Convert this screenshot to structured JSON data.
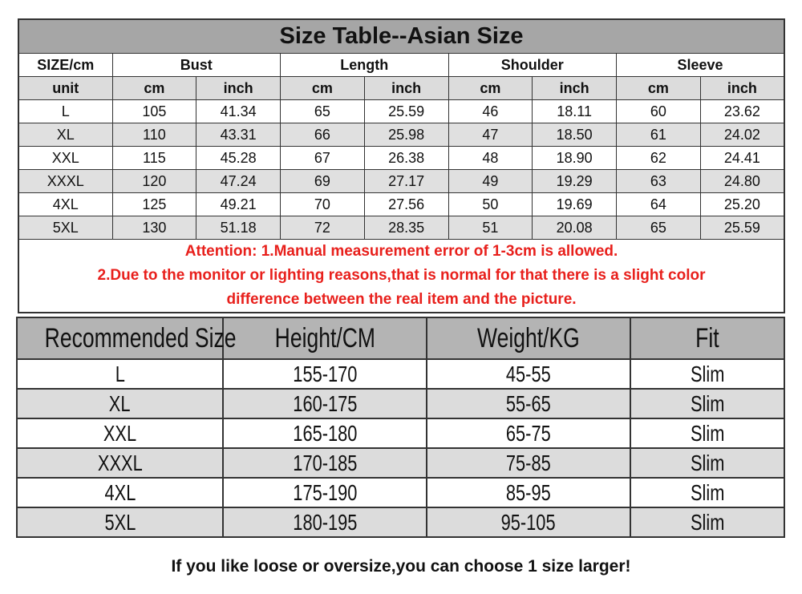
{
  "asian_table": {
    "title": "Size Table--Asian Size",
    "headers": [
      "SIZE/cm",
      "Bust",
      "Length",
      "Shoulder",
      "Sleeve"
    ],
    "unit_row": [
      "unit",
      "cm",
      "inch",
      "cm",
      "inch",
      "cm",
      "inch",
      "cm",
      "inch"
    ],
    "rows": [
      [
        "L",
        "105",
        "41.34",
        "65",
        "25.59",
        "46",
        "18.11",
        "60",
        "23.62"
      ],
      [
        "XL",
        "110",
        "43.31",
        "66",
        "25.98",
        "47",
        "18.50",
        "61",
        "24.02"
      ],
      [
        "XXL",
        "115",
        "45.28",
        "67",
        "26.38",
        "48",
        "18.90",
        "62",
        "24.41"
      ],
      [
        "XXXL",
        "120",
        "47.24",
        "69",
        "27.17",
        "49",
        "19.29",
        "63",
        "24.80"
      ],
      [
        "4XL",
        "125",
        "49.21",
        "70",
        "27.56",
        "50",
        "19.69",
        "64",
        "25.20"
      ],
      [
        "5XL",
        "130",
        "51.18",
        "72",
        "28.35",
        "51",
        "20.08",
        "65",
        "25.59"
      ]
    ],
    "attention_line1": "Attention:  1.Manual measurement error of 1-3cm is allowed.",
    "attention_line2": "2.Due to the monitor or lighting reasons,that is normal for that there is a slight color",
    "attention_line3": "difference between the real item and the picture.",
    "attention_color": "#e8201c"
  },
  "recommend_table": {
    "headers": [
      "Recommended Size",
      "Height/CM",
      "Weight/KG",
      "Fit"
    ],
    "rows": [
      [
        "L",
        "155-170",
        "45-55",
        "Slim"
      ],
      [
        "XL",
        "160-175",
        "55-65",
        "Slim"
      ],
      [
        "XXL",
        "165-180",
        "65-75",
        "Slim"
      ],
      [
        "XXXL",
        "170-185",
        "75-85",
        "Slim"
      ],
      [
        "4XL",
        "175-190",
        "85-95",
        "Slim"
      ],
      [
        "5XL",
        "180-195",
        "95-105",
        "Slim"
      ]
    ]
  },
  "note": "If you like loose or oversize,you can choose 1 size larger!"
}
